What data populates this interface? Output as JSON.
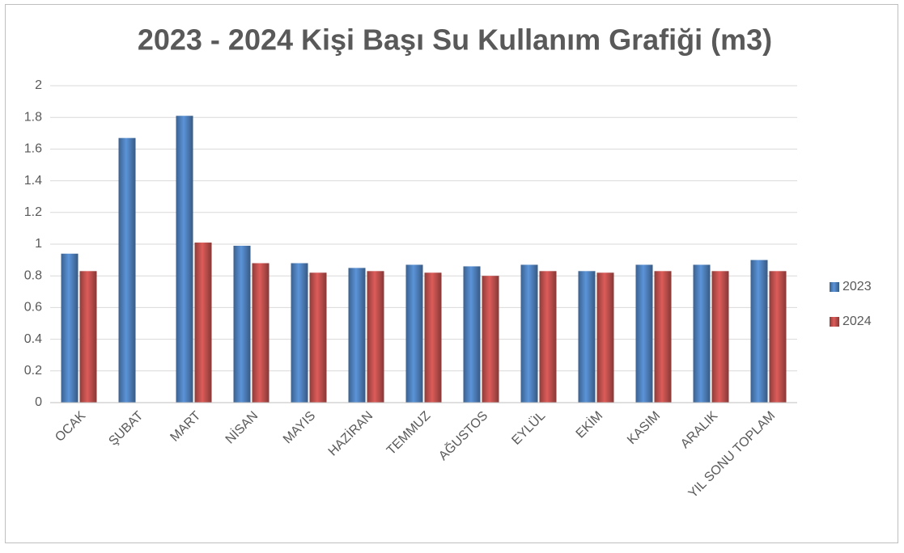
{
  "chart_data": {
    "type": "bar",
    "title": "2023 - 2024 Kişi Başı Su Kullanım Grafiği (m3)",
    "categories": [
      "OCAK",
      "ŞUBAT",
      "MART",
      "NİSAN",
      "MAYIS",
      "HAZİRAN",
      "TEMMUZ",
      "AĞUSTOS",
      "EYLÜL",
      "EKİM",
      "KASIM",
      "ARALIK",
      "YIL SONU TOPLAM"
    ],
    "series": [
      {
        "name": "2023",
        "color": "#4f81bd",
        "values": [
          0.94,
          1.67,
          1.81,
          0.99,
          0.88,
          0.85,
          0.87,
          0.86,
          0.87,
          0.83,
          0.87,
          0.87,
          0.9
        ]
      },
      {
        "name": "2024",
        "color": "#c0504d",
        "values": [
          0.83,
          null,
          1.01,
          0.88,
          0.82,
          0.83,
          0.82,
          0.8,
          0.83,
          0.82,
          0.83,
          0.83,
          0.83
        ]
      }
    ],
    "ylim": [
      0,
      2
    ],
    "yticks": [
      0,
      0.2,
      0.4,
      0.6,
      0.8,
      1,
      1.2,
      1.4,
      1.6,
      1.8,
      2
    ],
    "grid": true,
    "legend": "right"
  }
}
